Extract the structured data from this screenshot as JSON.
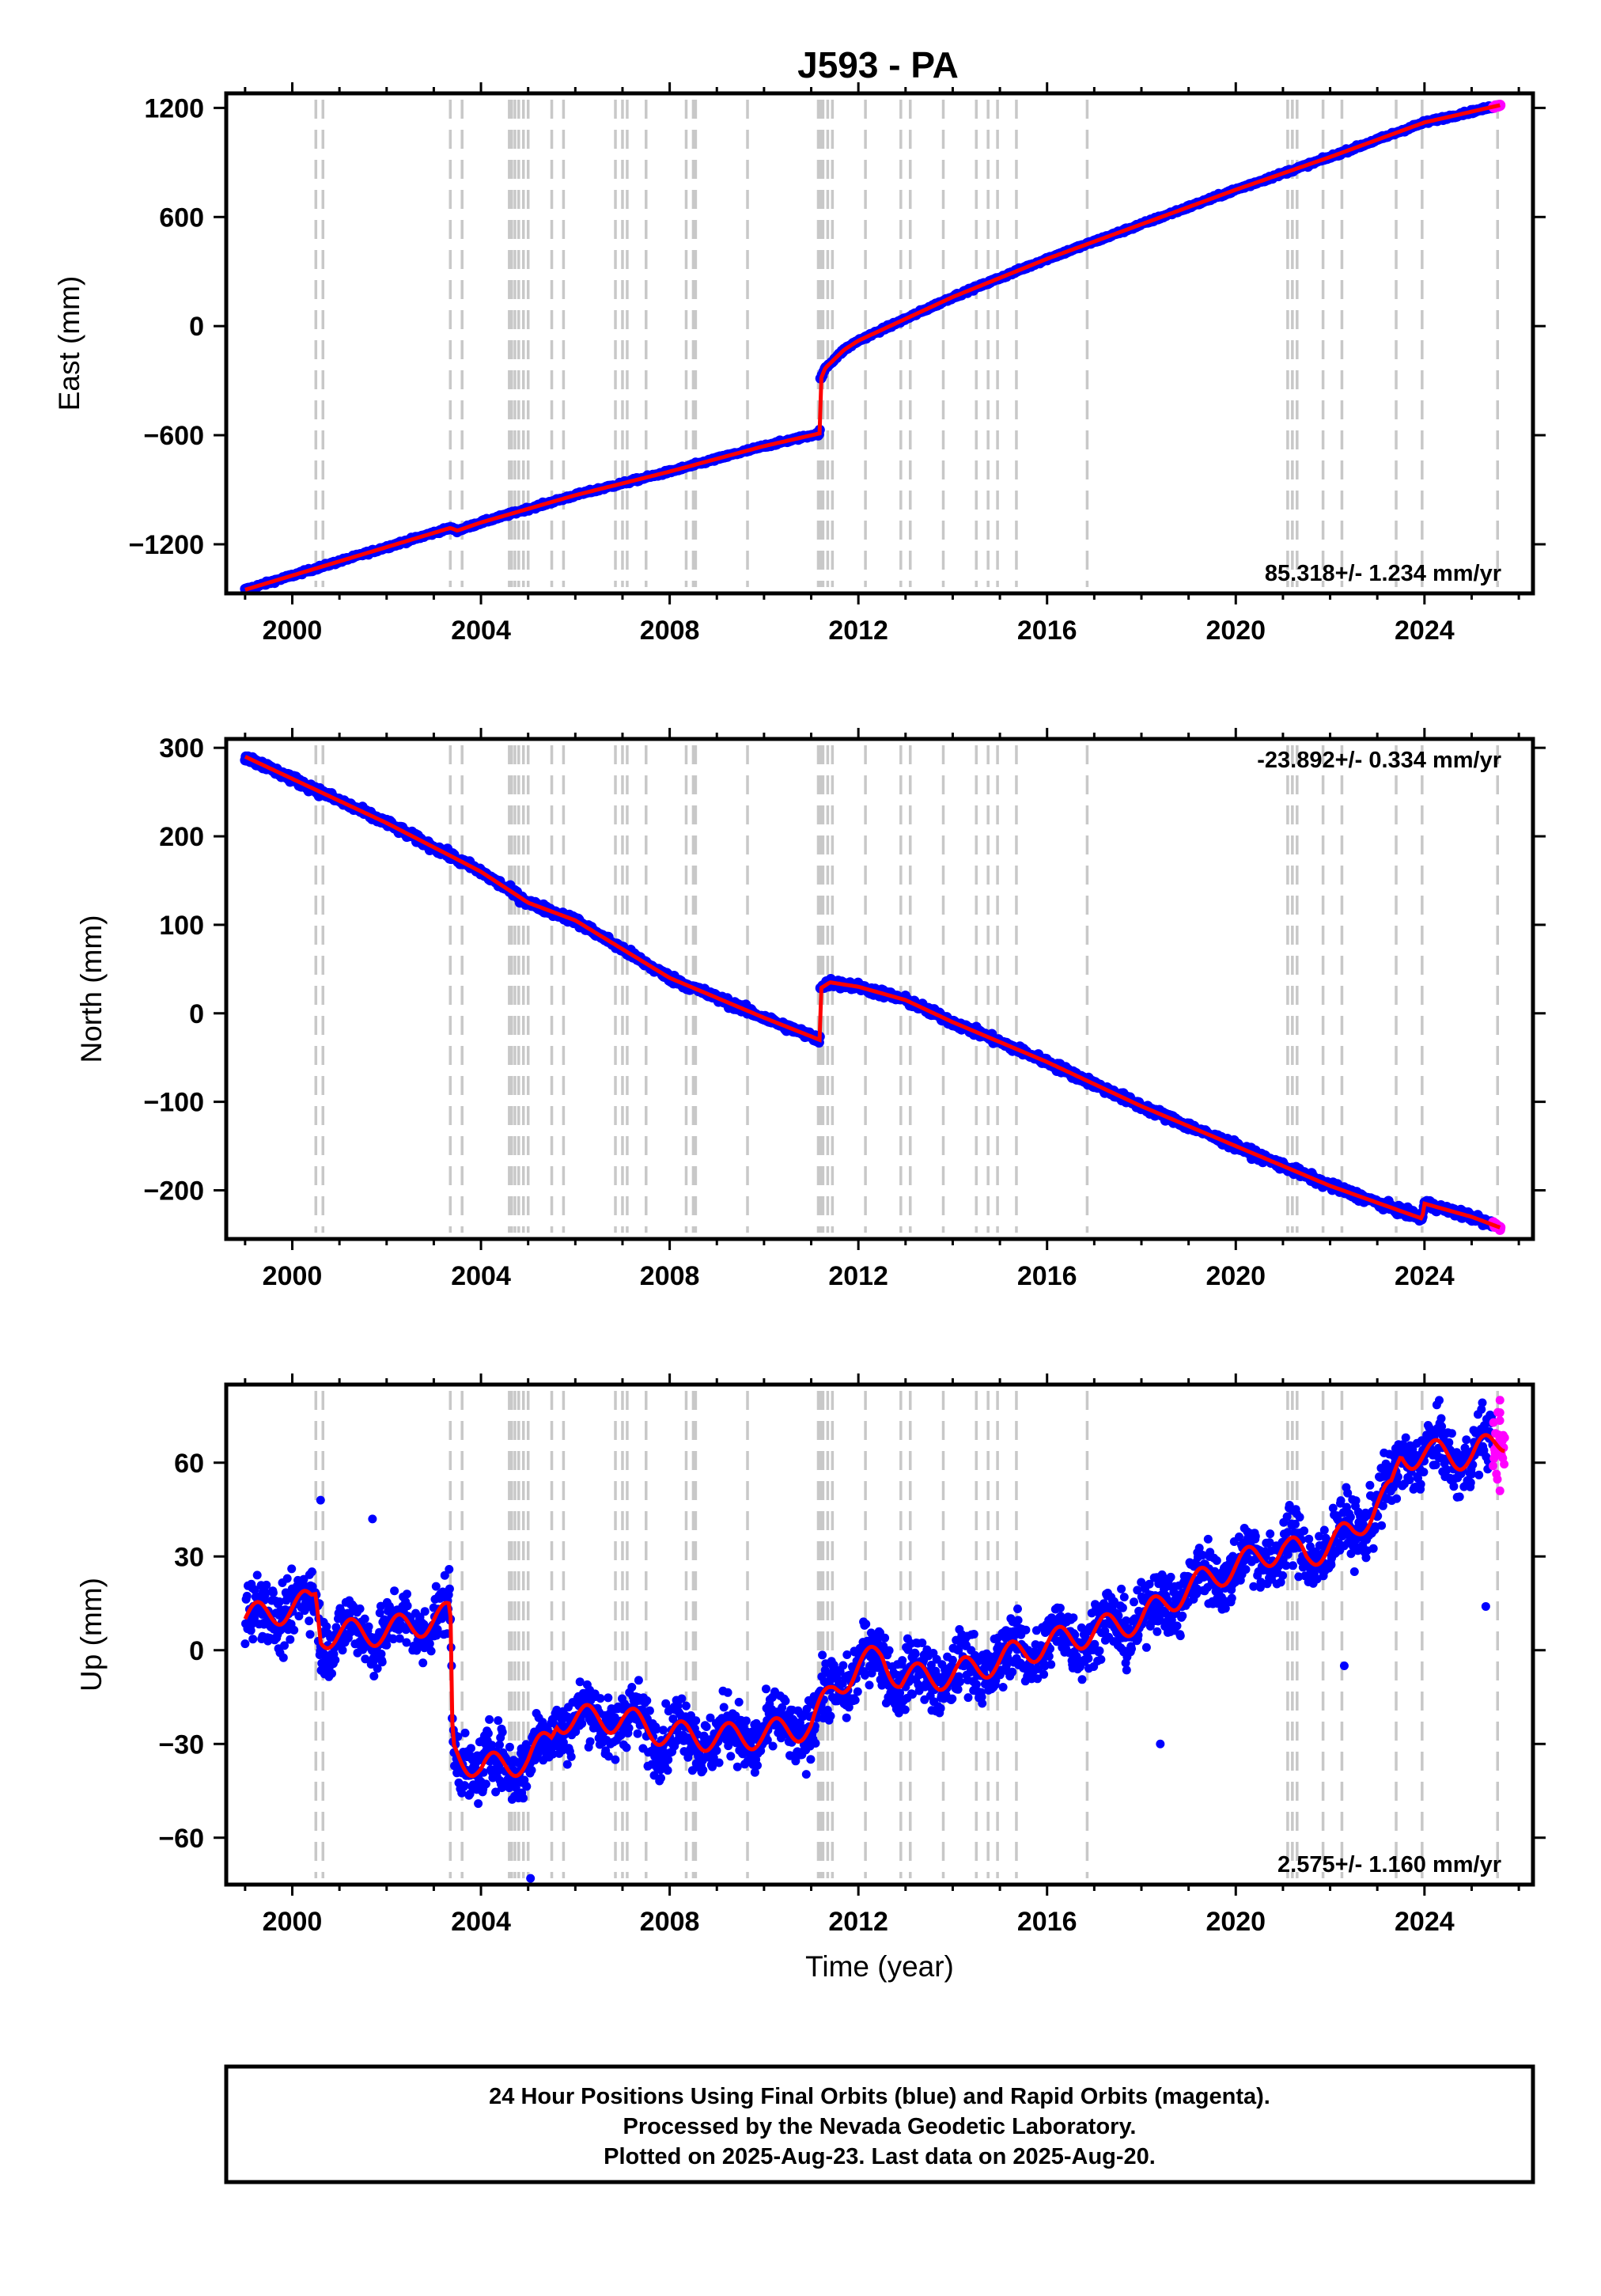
{
  "title": "J593 - PA",
  "xlabel": "Time (year)",
  "footer": {
    "line1": "24 Hour Positions Using Final Orbits (blue) and Rapid Orbits (magenta).",
    "line2": "Processed by the Nevada Geodetic Laboratory.",
    "line3": "Plotted on 2025-Aug-23. Last data on 2025-Aug-20."
  },
  "colors": {
    "final": "#0000ff",
    "rapid": "#ff00ff",
    "model": "#ff0000",
    "event_line": "#c8c8c8"
  },
  "chart_data": [
    {
      "type": "scatter",
      "ylabel": "East (mm)",
      "rate_label": "85.318+/- 1.234 mm/yr",
      "xlim": [
        1998.6,
        2026.3
      ],
      "xticks": [
        2000,
        2004,
        2008,
        2012,
        2016,
        2020,
        2024
      ],
      "xtick_labels": [
        "2000",
        "2004",
        "2008",
        "2012",
        "2016",
        "2020",
        "2024"
      ],
      "ylim": [
        -1470,
        1280
      ],
      "yticks": [
        -1200,
        -600,
        0,
        600,
        1200
      ],
      "ytick_labels": [
        "−1200",
        "−600",
        "0",
        "600",
        "1200"
      ],
      "series": [
        {
          "values": [
            [
              1999.0,
              -1450
            ],
            [
              2003.35,
              -1110
            ],
            [
              2003.5,
              -1125
            ],
            [
              2004.0,
              -1080
            ],
            [
              2006.0,
              -930
            ],
            [
              2008.0,
              -800
            ],
            [
              2010.0,
              -660
            ],
            [
              2011.18,
              -590
            ],
            [
              2011.19,
              -300
            ],
            [
              2011.3,
              -230
            ],
            [
              2011.7,
              -130
            ],
            [
              2012.0,
              -80
            ],
            [
              2013.0,
              40
            ],
            [
              2014.0,
              160
            ],
            [
              2016.0,
              370
            ],
            [
              2018.0,
              560
            ],
            [
              2020.0,
              750
            ],
            [
              2022.0,
              930
            ],
            [
              2024.0,
              1120
            ],
            [
              2025.6,
              1215
            ]
          ]
        }
      ]
    },
    {
      "type": "scatter",
      "ylabel": "North (mm)",
      "rate_label": "-23.892+/- 0.334 mm/yr",
      "xlim": [
        1998.6,
        2026.3
      ],
      "xticks": [
        2000,
        2004,
        2008,
        2012,
        2016,
        2020,
        2024
      ],
      "xtick_labels": [
        "2000",
        "2004",
        "2008",
        "2012",
        "2016",
        "2020",
        "2024"
      ],
      "ylim": [
        -255,
        310
      ],
      "yticks": [
        -200,
        -100,
        0,
        100,
        200,
        300
      ],
      "ytick_labels": [
        "−200",
        "−100",
        "0",
        "100",
        "200",
        "300"
      ],
      "series": [
        {
          "values": [
            [
              1999.0,
              290
            ],
            [
              2000.0,
              265
            ],
            [
              2002.0,
              215
            ],
            [
              2003.35,
              178
            ],
            [
              2004.0,
              160
            ],
            [
              2005.0,
              125
            ],
            [
              2006.0,
              105
            ],
            [
              2008.0,
              40
            ],
            [
              2010.0,
              -5
            ],
            [
              2011.18,
              -30
            ],
            [
              2011.19,
              28
            ],
            [
              2011.4,
              35
            ],
            [
              2012.0,
              30
            ],
            [
              2013.0,
              15
            ],
            [
              2014.0,
              -10
            ],
            [
              2016.0,
              -55
            ],
            [
              2018.0,
              -105
            ],
            [
              2020.0,
              -150
            ],
            [
              2022.0,
              -195
            ],
            [
              2023.95,
              -232
            ],
            [
              2024.0,
              -215
            ],
            [
              2025.0,
              -230
            ],
            [
              2025.6,
              -242
            ]
          ]
        }
      ]
    },
    {
      "type": "scatter",
      "ylabel": "Up (mm)",
      "rate_label": "2.575+/- 1.160 mm/yr",
      "xlim": [
        1998.6,
        2026.3
      ],
      "xticks": [
        2000,
        2004,
        2008,
        2012,
        2016,
        2020,
        2024
      ],
      "xtick_labels": [
        "2000",
        "2004",
        "2008",
        "2012",
        "2016",
        "2020",
        "2024"
      ],
      "ylim": [
        -75,
        85
      ],
      "yticks": [
        -60,
        -30,
        0,
        30,
        60
      ],
      "ytick_labels": [
        "−60",
        "−30",
        "0",
        "30",
        "60"
      ],
      "series": [
        {
          "values": [
            [
              1999.0,
              10
            ],
            [
              2000.4,
              15
            ],
            [
              2000.5,
              18
            ],
            [
              2000.6,
              5
            ],
            [
              2002.0,
              6
            ],
            [
              2003.35,
              11
            ],
            [
              2003.4,
              -32
            ],
            [
              2004.0,
              -38
            ],
            [
              2005.0,
              -35
            ],
            [
              2005.5,
              -28
            ],
            [
              2005.6,
              -22
            ],
            [
              2007.0,
              -22
            ],
            [
              2008.0,
              -27
            ],
            [
              2009.0,
              -28
            ],
            [
              2010.0,
              -27
            ],
            [
              2011.0,
              -24
            ],
            [
              2011.5,
              -12
            ],
            [
              2012.0,
              -5
            ],
            [
              2012.5,
              -2
            ],
            [
              2012.9,
              -9
            ],
            [
              2014.0,
              -8
            ],
            [
              2015.0,
              -3
            ],
            [
              2016.0,
              2
            ],
            [
              2017.0,
              6
            ],
            [
              2018.0,
              10
            ],
            [
              2019.0,
              20
            ],
            [
              2020.0,
              27
            ],
            [
              2021.0,
              33
            ],
            [
              2021.5,
              30
            ],
            [
              2022.5,
              38
            ],
            [
              2023.0,
              47
            ],
            [
              2023.3,
              50
            ],
            [
              2023.5,
              62
            ],
            [
              2024.0,
              63
            ],
            [
              2025.0,
              62
            ],
            [
              2025.7,
              68
            ]
          ]
        }
      ]
    }
  ]
}
